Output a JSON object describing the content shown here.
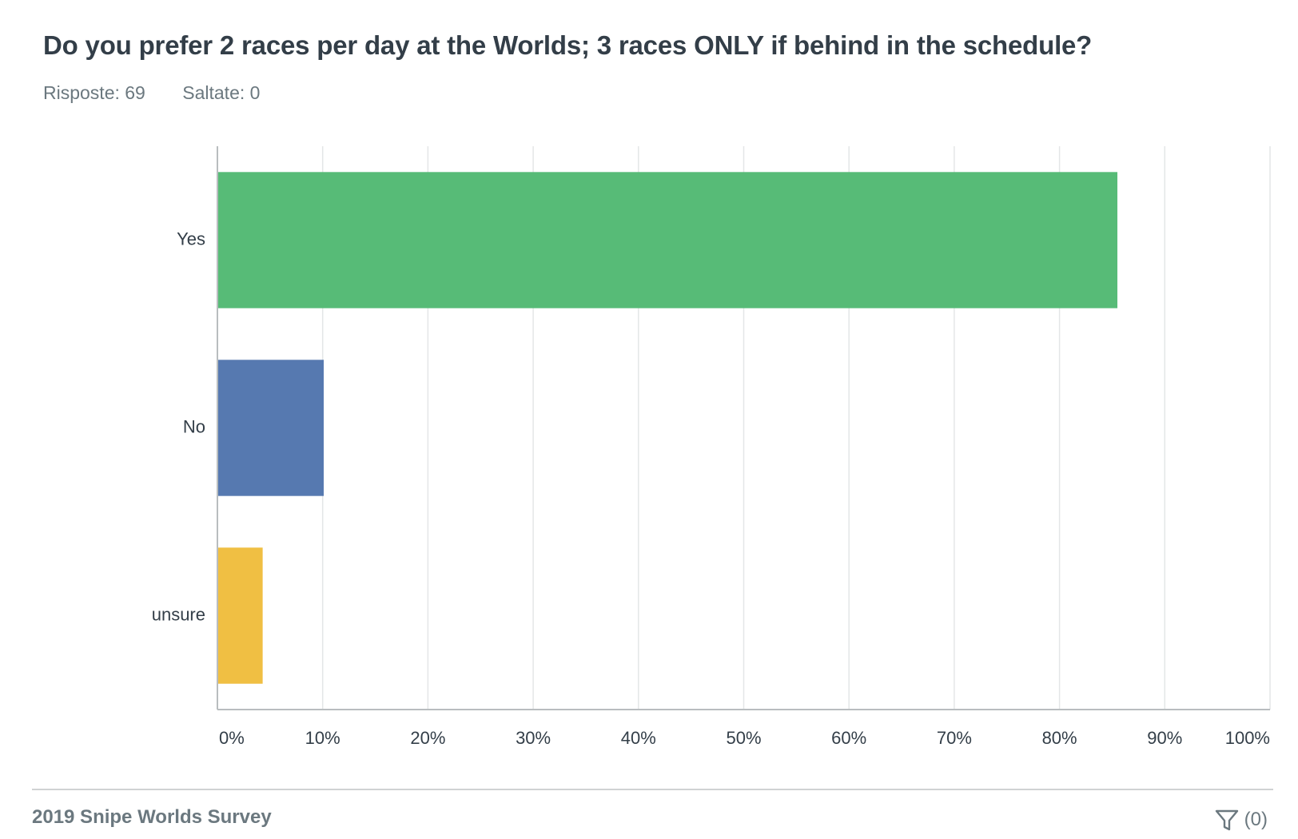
{
  "question": {
    "title": "Do you prefer 2 races per day at the Worlds; 3 races ONLY if behind in the schedule?",
    "responses_label": "Risposte: 69",
    "skipped_label": "Saltate: 0"
  },
  "chart_data": {
    "type": "bar",
    "orientation": "horizontal",
    "categories": [
      "Yes",
      "No",
      "unsure"
    ],
    "values": [
      85.5,
      10.1,
      4.3
    ],
    "colors": [
      "#57bb77",
      "#5679b0",
      "#f0bf43"
    ],
    "xlim": [
      0,
      100
    ],
    "x_ticks": [
      "0%",
      "10%",
      "20%",
      "30%",
      "40%",
      "50%",
      "60%",
      "70%",
      "80%",
      "90%",
      "100%"
    ],
    "grid": true
  },
  "footer": {
    "survey_name": "2019 Snipe Worlds Survey",
    "filter_icon": "filter-icon",
    "filter_count": "(0)"
  }
}
